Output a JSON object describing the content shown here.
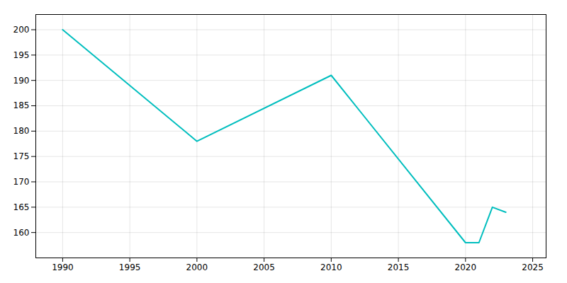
{
  "chart_data": {
    "type": "line",
    "x": [
      1990,
      2000,
      2010,
      2020,
      2021,
      2022,
      2023
    ],
    "values": [
      200,
      178,
      191,
      158,
      158,
      165,
      164
    ],
    "color": "#00BEBE",
    "xlim": [
      1988,
      2026
    ],
    "ylim": [
      155,
      203
    ],
    "xticks": [
      1990,
      1995,
      2000,
      2005,
      2010,
      2015,
      2020,
      2025
    ],
    "yticks": [
      160,
      165,
      170,
      175,
      180,
      185,
      190,
      195,
      200
    ],
    "grid": true
  }
}
